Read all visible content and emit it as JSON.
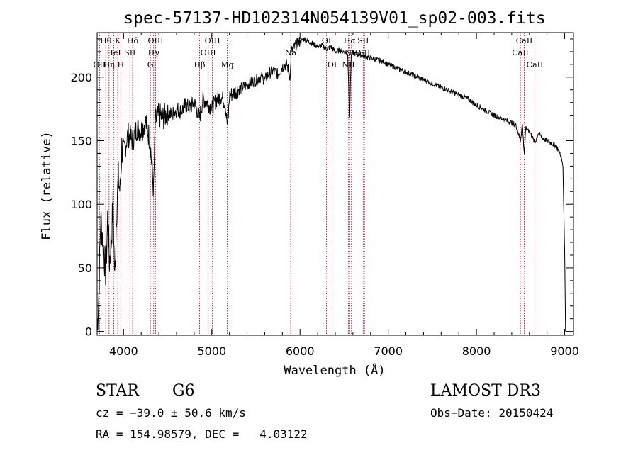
{
  "chart_data": {
    "type": "line",
    "title": "spec-57137-HD102314N054139V01_sp02-003.fits",
    "xlabel": "Wavelength (Å)",
    "ylabel": "Flux (relative)",
    "xlim": [
      3700,
      9100
    ],
    "ylim": [
      -3,
      235
    ],
    "x_ticks": [
      4000,
      5000,
      6000,
      7000,
      8000,
      9000
    ],
    "y_ticks": [
      0,
      50,
      100,
      150,
      200
    ],
    "x_tick_labels": [
      "4000",
      "5000",
      "6000",
      "7000",
      "8000",
      "9000"
    ],
    "y_tick_labels": [
      "0",
      "50",
      "100",
      "150",
      "200"
    ],
    "grid": false,
    "line_color": "#000000",
    "marker_color": "#c8102e",
    "series": [
      {
        "name": "flux",
        "x": [
          3700,
          3720,
          3740,
          3760,
          3780,
          3800,
          3820,
          3840,
          3860,
          3880,
          3900,
          3920,
          3940,
          3960,
          3980,
          4000,
          4050,
          4100,
          4150,
          4200,
          4250,
          4300,
          4340,
          4360,
          4400,
          4450,
          4500,
          4550,
          4600,
          4650,
          4700,
          4750,
          4800,
          4860,
          4900,
          4950,
          5000,
          5050,
          5100,
          5150,
          5180,
          5200,
          5250,
          5300,
          5350,
          5400,
          5450,
          5500,
          5550,
          5600,
          5650,
          5700,
          5750,
          5800,
          5850,
          5890,
          5900,
          5950,
          6000,
          6050,
          6100,
          6150,
          6200,
          6250,
          6300,
          6350,
          6400,
          6450,
          6500,
          6540,
          6563,
          6580,
          6600,
          6650,
          6700,
          6750,
          6800,
          6850,
          6900,
          6950,
          7000,
          7100,
          7200,
          7300,
          7400,
          7500,
          7600,
          7700,
          7800,
          7900,
          8000,
          8100,
          8200,
          8300,
          8400,
          8450,
          8498,
          8520,
          8542,
          8560,
          8600,
          8662,
          8700,
          8750,
          8800,
          8850,
          8900,
          8950,
          8980,
          9000,
          9010
        ],
        "y": [
          2,
          30,
          90,
          75,
          60,
          45,
          90,
          55,
          70,
          100,
          40,
          95,
          120,
          110,
          145,
          140,
          155,
          150,
          160,
          158,
          165,
          150,
          110,
          165,
          170,
          168,
          172,
          170,
          175,
          173,
          178,
          176,
          180,
          168,
          182,
          180,
          175,
          182,
          185,
          180,
          160,
          185,
          188,
          190,
          192,
          194,
          196,
          197,
          200,
          198,
          203,
          205,
          202,
          208,
          210,
          200,
          220,
          225,
          228,
          230,
          228,
          226,
          224,
          225,
          222,
          224,
          220,
          221,
          220,
          219,
          170,
          218,
          219,
          218,
          217,
          216,
          215,
          214,
          213,
          212,
          210,
          207,
          204,
          201,
          198,
          195,
          192,
          189,
          186,
          183,
          178,
          174,
          170,
          167,
          164,
          162,
          150,
          163,
          140,
          160,
          158,
          148,
          156,
          152,
          150,
          148,
          146,
          140,
          130,
          60,
          0
        ]
      }
    ],
    "lines": [
      {
        "name": "OII",
        "wavelength": 3727,
        "label_row": 2
      },
      {
        "name": "Hθ",
        "wavelength": 3798,
        "label_row": 0
      },
      {
        "name": "Hη",
        "wavelength": 3835,
        "label_row": 2
      },
      {
        "name": "HeI",
        "wavelength": 3889,
        "label_row": 1
      },
      {
        "name": "K",
        "wavelength": 3934,
        "label_row": 0
      },
      {
        "name": "H",
        "wavelength": 3968,
        "label_row": 2
      },
      {
        "name": "SII",
        "wavelength": 4072,
        "label_row": 1
      },
      {
        "name": "Hδ",
        "wavelength": 4102,
        "label_row": 0
      },
      {
        "name": "G",
        "wavelength": 4304,
        "label_row": 2
      },
      {
        "name": "Hγ",
        "wavelength": 4341,
        "label_row": 1
      },
      {
        "name": "OIII",
        "wavelength": 4363,
        "label_row": 0
      },
      {
        "name": "Hβ",
        "wavelength": 4861,
        "label_row": 2
      },
      {
        "name": "OIII",
        "wavelength": 4959,
        "label_row": 1
      },
      {
        "name": "OIII",
        "wavelength": 5007,
        "label_row": 0
      },
      {
        "name": "Mg",
        "wavelength": 5175,
        "label_row": 2
      },
      {
        "name": "Na",
        "wavelength": 5894,
        "label_row": 1
      },
      {
        "name": "OI",
        "wavelength": 6300,
        "label_row": 0
      },
      {
        "name": "OI",
        "wavelength": 6364,
        "label_row": 2
      },
      {
        "name": "NII",
        "wavelength": 6548,
        "label_row": 2
      },
      {
        "name": "Hα",
        "wavelength": 6563,
        "label_row": 0
      },
      {
        "name": "NII",
        "wavelength": 6583,
        "label_row": 1
      },
      {
        "name": "SII",
        "wavelength": 6716,
        "label_row": 0
      },
      {
        "name": "SII",
        "wavelength": 6731,
        "label_row": 1
      },
      {
        "name": "CaII",
        "wavelength": 8498,
        "label_row": 1
      },
      {
        "name": "CaII",
        "wavelength": 8542,
        "label_row": 0
      },
      {
        "name": "CaII",
        "wavelength": 8662,
        "label_row": 2
      }
    ]
  },
  "info": {
    "object_class": "STAR",
    "subclass": "G6",
    "survey": "LAMOST DR3",
    "redshift": "cz = −39.0 ± 50.6 km/s",
    "obs_date": "Obs−Date: 20150424",
    "coords": "RA = 154.98579, DEC =   4.03122"
  }
}
